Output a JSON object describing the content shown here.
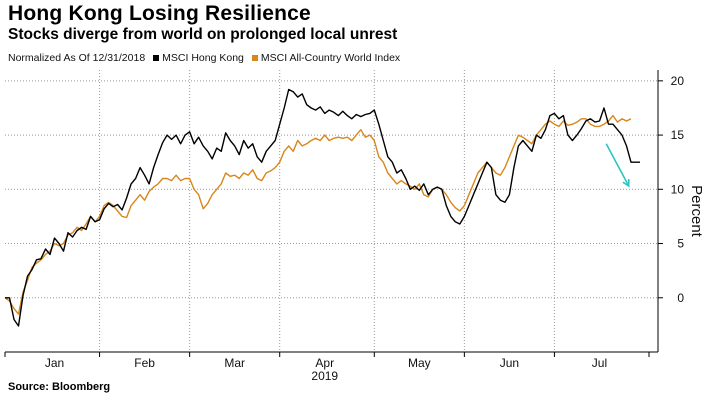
{
  "header": {
    "title": "Hong Kong Losing Resilience",
    "subtitle": "Stocks diverge from world on prolonged local unrest"
  },
  "legend": {
    "note": "Normalized As Of 12/31/2018",
    "items": [
      {
        "label": "MSCI Hong Kong",
        "color": "#000000"
      },
      {
        "label": "MSCI All-Country World Index",
        "color": "#d9861a"
      }
    ]
  },
  "footer": {
    "source": "Source: Bloomberg"
  },
  "colors": {
    "arrow": "#2ec4c4",
    "grid": "#9a9a9a"
  },
  "chart_data": {
    "type": "line",
    "title": "Hong Kong Losing Resilience",
    "xlabel": "2019",
    "ylabel": "Percent",
    "x_range": [
      0,
      145
    ],
    "ylim": [
      -5,
      21
    ],
    "yticks": [
      0,
      5,
      10,
      15,
      20
    ],
    "month_labels": [
      {
        "label": "Jan",
        "x": 11
      },
      {
        "label": "Feb",
        "x": 31
      },
      {
        "label": "Mar",
        "x": 51
      },
      {
        "label": "Apr",
        "x": 71
      },
      {
        "label": "May",
        "x": 92
      },
      {
        "label": "Jun",
        "x": 112
      },
      {
        "label": "Jul",
        "x": 132
      }
    ],
    "month_boundaries": [
      0,
      21,
      41,
      61,
      82,
      102,
      122,
      143
    ],
    "year_label": "2019",
    "series": [
      {
        "name": "MSCI Hong Kong",
        "color": "#000000",
        "points": [
          [
            0,
            0
          ],
          [
            1,
            0
          ],
          [
            2,
            -2
          ],
          [
            3,
            -2.6
          ],
          [
            4,
            0.2
          ],
          [
            5,
            2
          ],
          [
            6,
            2.6
          ],
          [
            7,
            3.5
          ],
          [
            8,
            3.6
          ],
          [
            9,
            4.5
          ],
          [
            10,
            4
          ],
          [
            11,
            5.5
          ],
          [
            12,
            5
          ],
          [
            13,
            4.3
          ],
          [
            14,
            6
          ],
          [
            15,
            5.6
          ],
          [
            16,
            6.2
          ],
          [
            17,
            6.5
          ],
          [
            18,
            6.3
          ],
          [
            19,
            7.5
          ],
          [
            20,
            7
          ],
          [
            21,
            7.2
          ],
          [
            22,
            8.2
          ],
          [
            23,
            8.7
          ],
          [
            24,
            8.4
          ],
          [
            25,
            8.6
          ],
          [
            26,
            8.1
          ],
          [
            27,
            9.2
          ],
          [
            28,
            10.5
          ],
          [
            29,
            11
          ],
          [
            30,
            12
          ],
          [
            31,
            11.3
          ],
          [
            32,
            10.5
          ],
          [
            33,
            12
          ],
          [
            34,
            13.2
          ],
          [
            35,
            14.3
          ],
          [
            36,
            15
          ],
          [
            37,
            14.6
          ],
          [
            38,
            15
          ],
          [
            39,
            14.2
          ],
          [
            40,
            15
          ],
          [
            41,
            15.3
          ],
          [
            42,
            14.2
          ],
          [
            43,
            14.8
          ],
          [
            44,
            14
          ],
          [
            45,
            13.5
          ],
          [
            46,
            12.8
          ],
          [
            47,
            13.8
          ],
          [
            48,
            13.5
          ],
          [
            49,
            15.2
          ],
          [
            50,
            14.5
          ],
          [
            51,
            14
          ],
          [
            52,
            13.2
          ],
          [
            53,
            14.5
          ],
          [
            54,
            13.8
          ],
          [
            55,
            14.2
          ],
          [
            56,
            13
          ],
          [
            57,
            12.5
          ],
          [
            58,
            13.5
          ],
          [
            59,
            14
          ],
          [
            60,
            14.5
          ],
          [
            61,
            16
          ],
          [
            62,
            17.5
          ],
          [
            63,
            19.2
          ],
          [
            64,
            19
          ],
          [
            65,
            18.5
          ],
          [
            66,
            18.8
          ],
          [
            67,
            17.8
          ],
          [
            68,
            17.5
          ],
          [
            69,
            17.3
          ],
          [
            70,
            17.6
          ],
          [
            71,
            17
          ],
          [
            72,
            17.3
          ],
          [
            73,
            17.1
          ],
          [
            74,
            16.8
          ],
          [
            75,
            17.2
          ],
          [
            76,
            16.8
          ],
          [
            77,
            16.5
          ],
          [
            78,
            16.9
          ],
          [
            79,
            16.7
          ],
          [
            80,
            16.9
          ],
          [
            81,
            17
          ],
          [
            82,
            17.3
          ],
          [
            83,
            16
          ],
          [
            84,
            14.5
          ],
          [
            85,
            13
          ],
          [
            86,
            12.5
          ],
          [
            87,
            11.5
          ],
          [
            88,
            11.8
          ],
          [
            89,
            11
          ],
          [
            90,
            10
          ],
          [
            91,
            10.3
          ],
          [
            92,
            9.9
          ],
          [
            93,
            10.5
          ],
          [
            94,
            9.5
          ],
          [
            95,
            10
          ],
          [
            96,
            10.2
          ],
          [
            97,
            10
          ],
          [
            98,
            8.5
          ],
          [
            99,
            7.5
          ],
          [
            100,
            7
          ],
          [
            101,
            6.8
          ],
          [
            102,
            7.5
          ],
          [
            103,
            8.5
          ],
          [
            104,
            9.5
          ],
          [
            105,
            10.5
          ],
          [
            106,
            11.5
          ],
          [
            107,
            12.5
          ],
          [
            108,
            12
          ],
          [
            109,
            9.5
          ],
          [
            110,
            9
          ],
          [
            111,
            8.8
          ],
          [
            112,
            9.5
          ],
          [
            113,
            12
          ],
          [
            114,
            14
          ],
          [
            115,
            14.5
          ],
          [
            116,
            14
          ],
          [
            117,
            13.5
          ],
          [
            118,
            15
          ],
          [
            119,
            14.7
          ],
          [
            120,
            15.5
          ],
          [
            121,
            16.8
          ],
          [
            122,
            17
          ],
          [
            123,
            16.5
          ],
          [
            124,
            16.8
          ],
          [
            125,
            15
          ],
          [
            126,
            14.5
          ],
          [
            127,
            15
          ],
          [
            128,
            15.6
          ],
          [
            129,
            16.3
          ],
          [
            130,
            16.5
          ],
          [
            131,
            16.2
          ],
          [
            132,
            16.3
          ],
          [
            133,
            17.5
          ],
          [
            134,
            16
          ],
          [
            135,
            16
          ],
          [
            136,
            15.5
          ],
          [
            137,
            15
          ],
          [
            138,
            14
          ],
          [
            139,
            12.5
          ],
          [
            140,
            12.5
          ],
          [
            141,
            12.5
          ]
        ]
      },
      {
        "name": "MSCI All-Country World Index",
        "color": "#d9861a",
        "points": [
          [
            0,
            0
          ],
          [
            1,
            -0.3
          ],
          [
            2,
            -1
          ],
          [
            3,
            -1.5
          ],
          [
            4,
            0.5
          ],
          [
            5,
            1.6
          ],
          [
            6,
            2.8
          ],
          [
            7,
            3.2
          ],
          [
            8,
            3.5
          ],
          [
            9,
            4
          ],
          [
            10,
            4.3
          ],
          [
            11,
            5
          ],
          [
            12,
            4.8
          ],
          [
            13,
            5
          ],
          [
            14,
            5.8
          ],
          [
            15,
            6
          ],
          [
            16,
            6.5
          ],
          [
            17,
            6.2
          ],
          [
            18,
            6.8
          ],
          [
            19,
            7.5
          ],
          [
            20,
            7
          ],
          [
            21,
            7.5
          ],
          [
            22,
            8.5
          ],
          [
            23,
            8.8
          ],
          [
            24,
            8.5
          ],
          [
            25,
            8
          ],
          [
            26,
            7.5
          ],
          [
            27,
            7.4
          ],
          [
            28,
            8.5
          ],
          [
            29,
            9
          ],
          [
            30,
            9.5
          ],
          [
            31,
            9
          ],
          [
            32,
            9.8
          ],
          [
            33,
            10.2
          ],
          [
            34,
            10.5
          ],
          [
            35,
            11
          ],
          [
            36,
            11
          ],
          [
            37,
            10.8
          ],
          [
            38,
            11.3
          ],
          [
            39,
            10.8
          ],
          [
            40,
            11
          ],
          [
            41,
            11
          ],
          [
            42,
            10
          ],
          [
            43,
            9.5
          ],
          [
            44,
            8.2
          ],
          [
            45,
            8.7
          ],
          [
            46,
            9.5
          ],
          [
            47,
            10
          ],
          [
            48,
            10.5
          ],
          [
            49,
            11.5
          ],
          [
            50,
            11.2
          ],
          [
            51,
            11.3
          ],
          [
            52,
            11
          ],
          [
            53,
            11.5
          ],
          [
            54,
            11.3
          ],
          [
            55,
            11.8
          ],
          [
            56,
            11
          ],
          [
            57,
            10.8
          ],
          [
            58,
            11.5
          ],
          [
            59,
            11.7
          ],
          [
            60,
            12
          ],
          [
            61,
            12.5
          ],
          [
            62,
            13.5
          ],
          [
            63,
            14
          ],
          [
            64,
            13.5
          ],
          [
            65,
            14.5
          ],
          [
            66,
            14
          ],
          [
            67,
            14.2
          ],
          [
            68,
            14.5
          ],
          [
            69,
            14.7
          ],
          [
            70,
            14.5
          ],
          [
            71,
            15
          ],
          [
            72,
            14.5
          ],
          [
            73,
            14.7
          ],
          [
            74,
            14.8
          ],
          [
            75,
            14.7
          ],
          [
            76,
            14.8
          ],
          [
            77,
            14.5
          ],
          [
            78,
            15
          ],
          [
            79,
            15.5
          ],
          [
            80,
            14.8
          ],
          [
            81,
            15
          ],
          [
            82,
            14.5
          ],
          [
            83,
            13
          ],
          [
            84,
            12.5
          ],
          [
            85,
            11.5
          ],
          [
            86,
            11
          ],
          [
            87,
            10.5
          ],
          [
            88,
            10.8
          ],
          [
            89,
            10.5
          ],
          [
            90,
            10.3
          ],
          [
            91,
            10
          ],
          [
            92,
            10.5
          ],
          [
            93,
            9.5
          ],
          [
            94,
            9.3
          ],
          [
            95,
            10
          ],
          [
            96,
            10.2
          ],
          [
            97,
            10
          ],
          [
            98,
            9.5
          ],
          [
            99,
            8.8
          ],
          [
            100,
            8.3
          ],
          [
            101,
            8
          ],
          [
            102,
            8.5
          ],
          [
            103,
            9.5
          ],
          [
            104,
            10.5
          ],
          [
            105,
            11.5
          ],
          [
            106,
            12
          ],
          [
            107,
            12.5
          ],
          [
            108,
            12
          ],
          [
            109,
            11.5
          ],
          [
            110,
            11.3
          ],
          [
            111,
            12
          ],
          [
            112,
            13
          ],
          [
            113,
            14
          ],
          [
            114,
            15
          ],
          [
            115,
            14.8
          ],
          [
            116,
            14.5
          ],
          [
            117,
            14.2
          ],
          [
            118,
            15
          ],
          [
            119,
            15.5
          ],
          [
            120,
            16
          ],
          [
            121,
            16.3
          ],
          [
            122,
            16
          ],
          [
            123,
            15.8
          ],
          [
            124,
            16.3
          ],
          [
            125,
            15.9
          ],
          [
            126,
            16
          ],
          [
            127,
            16.2
          ],
          [
            128,
            16.5
          ],
          [
            129,
            16.5
          ],
          [
            130,
            16
          ],
          [
            131,
            15.8
          ],
          [
            132,
            15.8
          ],
          [
            133,
            16
          ],
          [
            134,
            16.3
          ],
          [
            135,
            16.8
          ],
          [
            136,
            16.2
          ],
          [
            137,
            16.5
          ],
          [
            138,
            16.3
          ],
          [
            139,
            16.5
          ]
        ]
      }
    ]
  }
}
